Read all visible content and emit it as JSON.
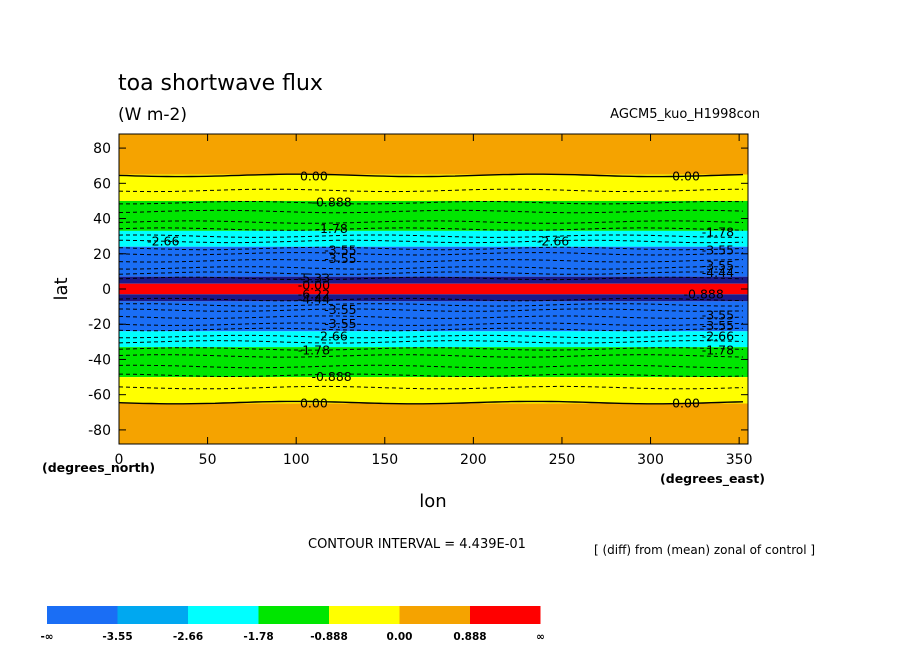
{
  "chart_data": {
    "type": "contour",
    "title": "toa shortwave flux",
    "units": "(W m-2)",
    "run_label": "AGCM5_kuo_H1998con",
    "xlabel": "lon",
    "ylabel": "lat",
    "x_unit_label": "(degrees_east)",
    "y_unit_label": "(degrees_north)",
    "xlim": [
      0,
      355
    ],
    "ylim": [
      -88,
      88
    ],
    "x_ticks": [
      0,
      50,
      100,
      150,
      200,
      250,
      300,
      350
    ],
    "y_ticks": [
      80,
      60,
      40,
      20,
      0,
      -20,
      -40,
      -60,
      -80
    ],
    "contour_interval_label": "CONTOUR INTERVAL = 4.439E-01",
    "diff_note": "[ (diff) from (mean) zonal of control ]",
    "bands": [
      {
        "lat_from": 88,
        "lat_to": 65,
        "color": "#f5a300"
      },
      {
        "lat_from": 65,
        "lat_to": 50,
        "color": "#ffff00"
      },
      {
        "lat_from": 50,
        "lat_to": 33,
        "color": "#00e600"
      },
      {
        "lat_from": 33,
        "lat_to": 24,
        "color": "#00ffff"
      },
      {
        "lat_from": 24,
        "lat_to": 7,
        "color": "#1a6ef5"
      },
      {
        "lat_from": 7,
        "lat_to": 3,
        "color": "#1a1a8a"
      },
      {
        "lat_from": 3,
        "lat_to": -3,
        "color": "#ff0000"
      },
      {
        "lat_from": -3,
        "lat_to": -7,
        "color": "#1a1a8a"
      },
      {
        "lat_from": -7,
        "lat_to": -24,
        "color": "#1a6ef5"
      },
      {
        "lat_from": -24,
        "lat_to": -33,
        "color": "#00ffff"
      },
      {
        "lat_from": -33,
        "lat_to": -50,
        "color": "#00e600"
      },
      {
        "lat_from": -50,
        "lat_to": -65,
        "color": "#ffff00"
      },
      {
        "lat_from": -65,
        "lat_to": -88,
        "color": "#f5a300"
      }
    ],
    "contours": [
      {
        "lat": 64.5,
        "value": "0.00",
        "solid": true
      },
      {
        "lat": 56,
        "value": "",
        "solid": false
      },
      {
        "lat": 49,
        "value": "-0.888",
        "solid": false
      },
      {
        "lat": 44,
        "value": "",
        "solid": false
      },
      {
        "lat": 38,
        "value": "",
        "solid": false
      },
      {
        "lat": 34,
        "value": "-1.78",
        "solid": false
      },
      {
        "lat": 30,
        "value": "",
        "solid": false
      },
      {
        "lat": 27,
        "value": "-2.66",
        "solid": false
      },
      {
        "lat": 23,
        "value": "-3.55",
        "solid": false
      },
      {
        "lat": 20,
        "value": "",
        "solid": false
      },
      {
        "lat": 16,
        "value": "",
        "solid": false
      },
      {
        "lat": 12,
        "value": "",
        "solid": false
      },
      {
        "lat": 9,
        "value": "",
        "solid": false
      },
      {
        "lat": 6,
        "value": "",
        "solid": false
      },
      {
        "lat": -6,
        "value": "",
        "solid": false
      },
      {
        "lat": -9,
        "value": "",
        "solid": false
      },
      {
        "lat": -12,
        "value": "",
        "solid": false
      },
      {
        "lat": -16,
        "value": "",
        "solid": false
      },
      {
        "lat": -20,
        "value": "",
        "solid": false
      },
      {
        "lat": -23,
        "value": "-3.55",
        "solid": false
      },
      {
        "lat": -27,
        "value": "-2.66",
        "solid": false
      },
      {
        "lat": -30,
        "value": "",
        "solid": false
      },
      {
        "lat": -34,
        "value": "-1.78",
        "solid": false
      },
      {
        "lat": -38,
        "value": "",
        "solid": false
      },
      {
        "lat": -44,
        "value": "",
        "solid": false
      },
      {
        "lat": -49,
        "value": "-0.888",
        "solid": false
      },
      {
        "lat": -56,
        "value": "",
        "solid": false
      },
      {
        "lat": -64.5,
        "value": "0.00",
        "solid": true
      }
    ],
    "contour_labels": [
      {
        "lon": 110,
        "lat": 64,
        "text": "0.00"
      },
      {
        "lon": 320,
        "lat": 64,
        "text": "0.00"
      },
      {
        "lon": 120,
        "lat": 49,
        "text": "-0.888"
      },
      {
        "lon": 120,
        "lat": 34,
        "text": "-1.78"
      },
      {
        "lon": 338,
        "lat": 32,
        "text": "-1.78"
      },
      {
        "lon": 25,
        "lat": 27,
        "text": "-2.66"
      },
      {
        "lon": 245,
        "lat": 27,
        "text": "-2.66"
      },
      {
        "lon": 125,
        "lat": 22,
        "text": "-3.55"
      },
      {
        "lon": 338,
        "lat": 22,
        "text": "-3.55"
      },
      {
        "lon": 125,
        "lat": 17,
        "text": "-3.55"
      },
      {
        "lon": 338,
        "lat": 13,
        "text": "-3.55"
      },
      {
        "lon": 338,
        "lat": 9,
        "text": "-4.44"
      },
      {
        "lon": 110,
        "lat": 6,
        "text": "-5.33"
      },
      {
        "lon": 110,
        "lat": 2,
        "text": "-0.00"
      },
      {
        "lon": 330,
        "lat": -3,
        "text": "-0.888"
      },
      {
        "lon": 110,
        "lat": -3,
        "text": "-6.22"
      },
      {
        "lon": 110,
        "lat": -6,
        "text": "-4.44"
      },
      {
        "lon": 125,
        "lat": -12,
        "text": "-3.55"
      },
      {
        "lon": 338,
        "lat": -15,
        "text": "-3.55"
      },
      {
        "lon": 125,
        "lat": -20,
        "text": "-3.55"
      },
      {
        "lon": 338,
        "lat": -21,
        "text": "-3.55"
      },
      {
        "lon": 120,
        "lat": -27,
        "text": "-2.66"
      },
      {
        "lon": 338,
        "lat": -27,
        "text": "-2.66"
      },
      {
        "lon": 110,
        "lat": -35,
        "text": "-1.78"
      },
      {
        "lon": 338,
        "lat": -35,
        "text": "-1.78"
      },
      {
        "lon": 120,
        "lat": -50,
        "text": "-0.888"
      },
      {
        "lon": 110,
        "lat": -65,
        "text": "0.00"
      },
      {
        "lon": 320,
        "lat": -65,
        "text": "0.00"
      }
    ],
    "colorbar": {
      "colors": [
        "#1a6ef5",
        "#00a8f0",
        "#00ffff",
        "#00e600",
        "#ffff00",
        "#f5a300",
        "#ff0000"
      ],
      "labels": [
        "-∞",
        "-3.55",
        "-2.66",
        "-1.78",
        "-0.888",
        "0.00",
        "0.888",
        "∞"
      ]
    }
  }
}
